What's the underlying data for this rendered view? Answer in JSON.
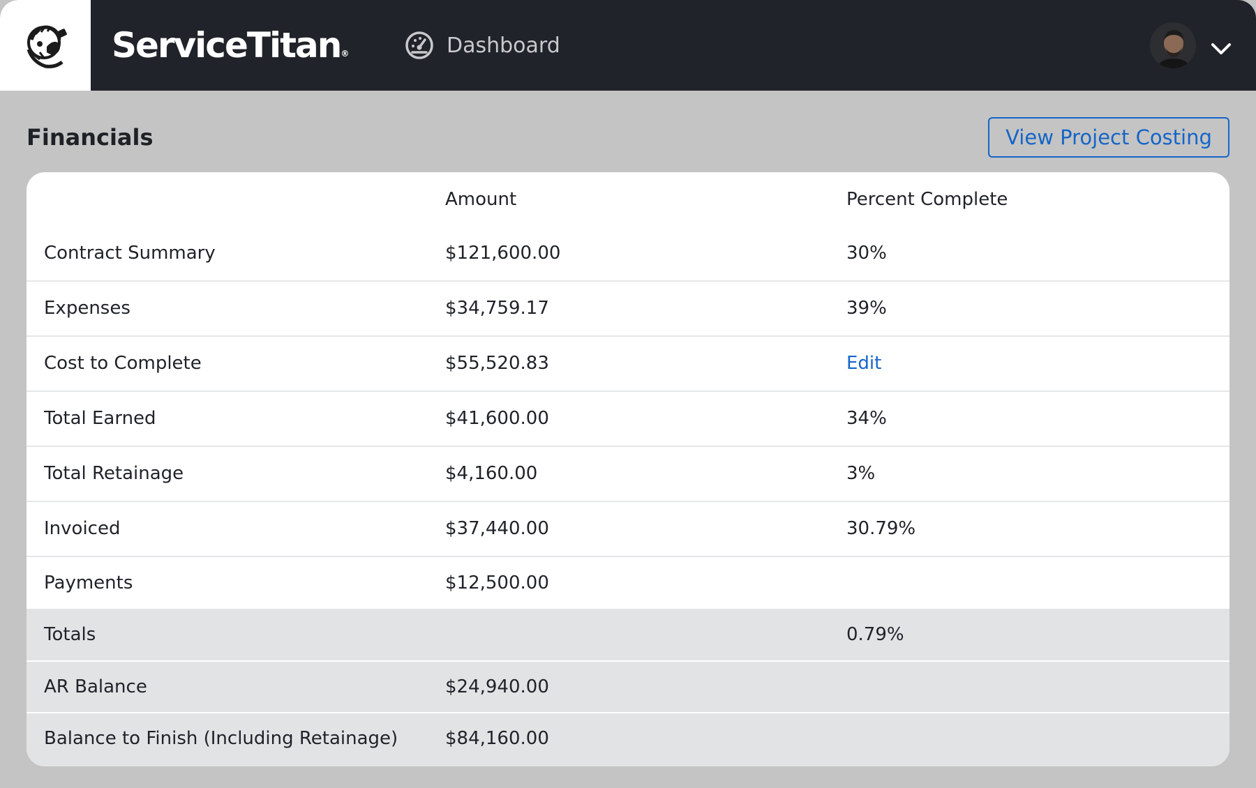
{
  "header": {
    "brand": "ServiceTitan",
    "brand_mark": "®",
    "nav_label": "Dashboard",
    "nav_icon": "dashboard-gauge-icon",
    "menu_icon": "chevron-down-icon"
  },
  "financials": {
    "title": "Financials",
    "view_costing_label": "View Project Costing",
    "columns": [
      "",
      "Amount",
      "Percent Complete"
    ],
    "rows": [
      {
        "label": "Contract Summary",
        "amount": "$121,600.00",
        "percent": "30%"
      },
      {
        "label": "Expenses",
        "amount": "$34,759.17",
        "percent": "39%"
      },
      {
        "label": "Cost to Complete",
        "amount": "$55,520.83",
        "percent": "Edit"
      },
      {
        "label": "Total Earned",
        "amount": "$41,600.00",
        "percent": "34%"
      },
      {
        "label": "Total Retainage",
        "amount": "$4,160.00",
        "percent": "3%"
      },
      {
        "label": "Invoiced",
        "amount": "$37,440.00",
        "percent": "30.79%"
      },
      {
        "label": "Payments",
        "amount": "$12,500.00",
        "percent": ""
      }
    ],
    "totals": [
      {
        "label": "Totals",
        "amount": "",
        "percent": "0.79%"
      },
      {
        "label": "AR Balance",
        "amount": "$24,940.00",
        "percent": ""
      },
      {
        "label": "Balance to Finish (Including Retainage)",
        "amount": "$84,160.00",
        "percent": ""
      }
    ]
  },
  "colors": {
    "topbar": "#202329",
    "background": "#c4c4c4",
    "accent": "#1565c8",
    "totals_bg": "#e2e3e5"
  }
}
